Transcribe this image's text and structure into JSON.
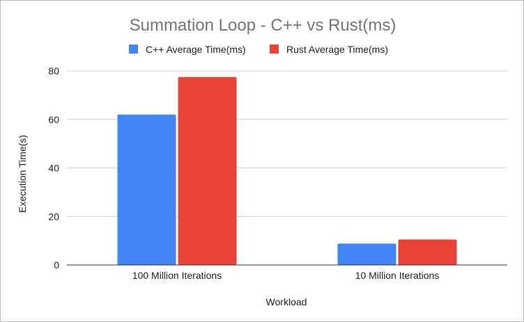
{
  "chart_data": {
    "type": "bar",
    "title": "Summation Loop - C++ vs Rust(ms)",
    "xlabel": "Workload",
    "ylabel": "Execution Time(s)",
    "categories": [
      "100 Million Iterations",
      "10 Million Iterations"
    ],
    "series": [
      {
        "name": "C++ Average Time(ms)",
        "color": "#4285F4",
        "values": [
          62,
          8.8
        ]
      },
      {
        "name": "Rust Average Time(ms)",
        "color": "#EA4335",
        "values": [
          77.5,
          10.5
        ]
      }
    ],
    "ylim": [
      0,
      80
    ],
    "yticks": [
      "0",
      "20",
      "40",
      "60",
      "80"
    ],
    "grid": true,
    "legend_position": "top"
  }
}
